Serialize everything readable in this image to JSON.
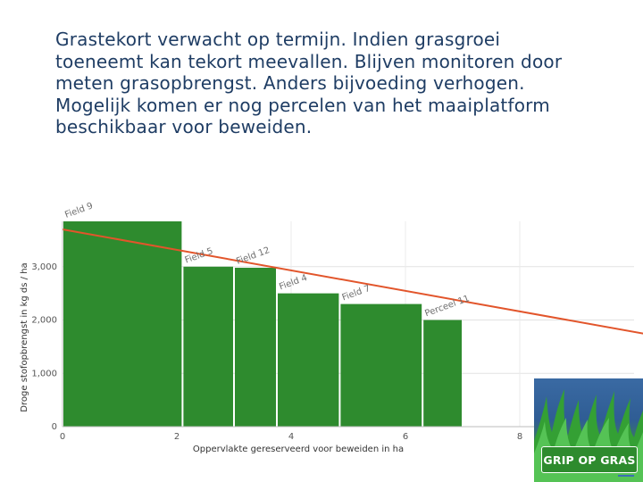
{
  "slide_text": [
    "Grastekort verwacht op termijn. Indien grasgroei",
    "toeneemt kan tekort meevallen. Blijven monitoren door",
    "meten grasopbrengst. Anders bijvoeding verhogen.",
    "Mogelijk komen er nog percelen van het maaiplatform",
    "beschikbaar voor beweiden."
  ],
  "logo": {
    "text": "GRIP OP GRAS"
  },
  "colors": {
    "bar": "#2e8b2e",
    "trend": "#e2552b",
    "text": "#1f3d64"
  },
  "chart_data": {
    "type": "bar",
    "title": "",
    "xlabel": "Oppervlakte gereserveerd voor beweiden in ha",
    "ylabel": "Droge stofopbrengst in kg ds / ha",
    "xlim": [
      0,
      10
    ],
    "ylim": [
      0,
      3850
    ],
    "x_ticks": [
      0,
      2,
      4,
      6,
      8
    ],
    "y_ticks": [
      0,
      1000,
      2000,
      3000
    ],
    "y_tick_labels": [
      "0",
      "1,000",
      "2,000",
      "3,000"
    ],
    "grid": true,
    "bars": [
      {
        "label": "Field 9",
        "x_start": 0.0,
        "x_end": 2.1,
        "value": 3850
      },
      {
        "label": "Field 5",
        "x_start": 2.1,
        "x_end": 3.0,
        "value": 3000
      },
      {
        "label": "Field 12",
        "x_start": 3.0,
        "x_end": 3.75,
        "value": 2980
      },
      {
        "label": "Field 4",
        "x_start": 3.75,
        "x_end": 4.85,
        "value": 2500
      },
      {
        "label": "Field 7",
        "x_start": 4.85,
        "x_end": 6.3,
        "value": 2300
      },
      {
        "label": "Perceel 11",
        "x_start": 6.3,
        "x_end": 7.0,
        "value": 2000
      }
    ],
    "trend_line": {
      "x": [
        0,
        10.4
      ],
      "y": [
        3700,
        1700
      ]
    }
  }
}
